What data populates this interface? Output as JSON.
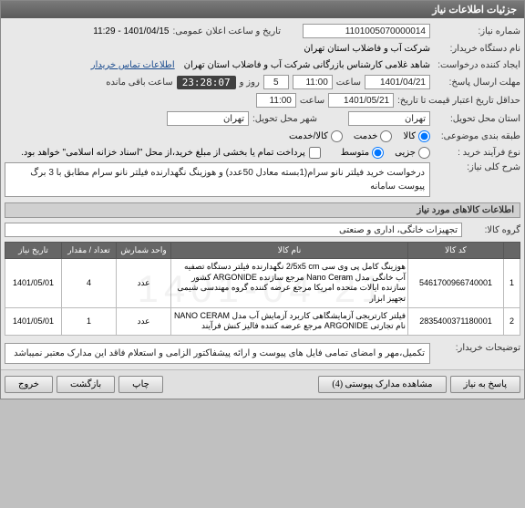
{
  "window": {
    "title": "جزئیات اطلاعات نیاز"
  },
  "fields": {
    "need_no_lbl": "شماره نیاز:",
    "need_no": "1101005070000014",
    "announce_lbl": "تاریخ و ساعت اعلان عمومی:",
    "announce_val": "1401/04/15 - 11:29",
    "buyer_org_lbl": "نام دستگاه خریدار:",
    "buyer_org": "شرکت آب و فاضلاب استان تهران",
    "requester_lbl": "ایجاد کننده درخواست:",
    "requester": "شاهد غلامی کارشناس بازرگانی شرکت آب و فاضلاب استان تهران",
    "contact_link": "اطلاعات تماس خریدار",
    "deadline_lbl": "مهلت ارسال پاسخ:",
    "deadline_date": "1401/04/21",
    "time_lbl": "ساعت",
    "deadline_time": "11:00",
    "days_lbl": "روز و",
    "days_val": "5",
    "countdown": "23:28:07",
    "remaining_lbl": "ساعت باقی مانده",
    "valid_lbl": "حداقل تاریخ اعتبار قیمت تا تاریخ:",
    "valid_date": "1401/05/21",
    "valid_time": "11:00",
    "delivery_state_lbl": "استان محل تحویل:",
    "delivery_state": "تهران",
    "delivery_city_lbl": "شهر محل تحویل:",
    "delivery_city": "تهران",
    "category_lbl": "طبقه بندی موضوعی:",
    "cat_goods": "کالا",
    "cat_service": "خدمت",
    "cat_goods_service": "کالا/خدمت",
    "process_lbl": "نوع فرآیند خرید :",
    "proc_small": "جزیی",
    "proc_medium": "متوسط",
    "doc_note": "پرداخت تمام یا بخشی از مبلغ خرید،از محل \"اسناد خزانه اسلامی\" خواهد بود.",
    "overall_lbl": "شرح کلی نیاز:",
    "overall_desc": "درخواست خرید فیلتر نانو سرام(1بسته معادل 50عدد)  و هوزینگ نگهدارنده فیلتر نانو سرام  مطابق با 3 برگ پیوست سامانه",
    "goods_section": "اطلاعات کالاهای مورد نیاز",
    "group_lbl": "گروه کالا:",
    "group_val": "تجهیزات خانگی، اداری و صنعتی",
    "buyer_notes_lbl": "توضیحات خریدار:",
    "buyer_notes": "تکمیل،مهر و امضای تمامی فایل های پیوست و ارائه پیشفاکتور الزامی و استعلام فاقد این مدارک معتبر نمیباشد"
  },
  "table": {
    "headers": {
      "code": "کد کالا",
      "name": "نام کالا",
      "unit": "واحد شمارش",
      "qty": "تعداد / مقدار",
      "need_date": "تاریخ نیاز"
    },
    "rows": [
      {
        "idx": "1",
        "code": "5461700966740001",
        "name": "هوزینگ کامل پی وی سی 2/5x5 cm نگهدارنده فیلتر دستگاه تصفیه آب خانگی مدل Nano Ceram مرجع سازنده ARGONIDE کشور سازنده ایالات متحده امریکا مرجع عرضه کننده گروه مهندسی شیمی تجهیز ابزار",
        "unit": "عدد",
        "qty": "4",
        "date": "1401/05/01"
      },
      {
        "idx": "2",
        "code": "2835400371180001",
        "name": "فیلتر کارتریجی آزمایشگاهی کاربرد آزمایش آب مدل NANO CERAM نام تجارتی ARGONIDE مرجع عرضه کننده فالیز کنش فرآیند",
        "unit": "عدد",
        "qty": "1",
        "date": "1401/05/01"
      }
    ]
  },
  "buttons": {
    "respond": "پاسخ به نیاز",
    "attachments": "مشاهده مدارک پیوستی (4)",
    "print": "چاپ",
    "back": "بازگشت",
    "exit": "خروج"
  },
  "watermark": "1401-04-21"
}
